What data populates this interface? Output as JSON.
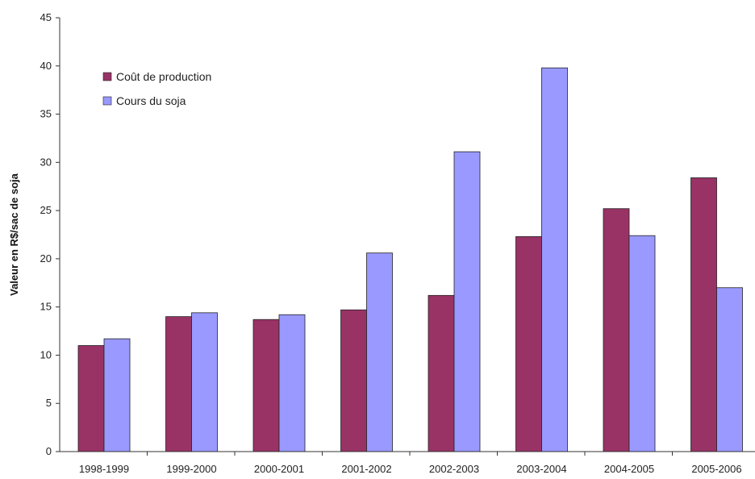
{
  "chart_data": {
    "type": "bar",
    "title": "",
    "xlabel": "",
    "ylabel": "Valeur en R$/sac de soja",
    "ylim": [
      0,
      45
    ],
    "yticks": [
      0,
      5,
      10,
      15,
      20,
      25,
      30,
      35,
      40,
      45
    ],
    "grid": false,
    "legend_position": "top-left",
    "categories": [
      "1998-1999",
      "1999-2000",
      "2000-2001",
      "2001-2002",
      "2002-2003",
      "2003-2004",
      "2004-2005",
      "2005-2006"
    ],
    "series": [
      {
        "name": "Coût de production",
        "color": "#993366",
        "values": [
          11.0,
          14.0,
          13.7,
          14.7,
          16.2,
          22.3,
          25.2,
          28.4
        ]
      },
      {
        "name": "Cours du soja",
        "color": "#9999ff",
        "values": [
          11.7,
          14.4,
          14.2,
          20.6,
          31.1,
          39.8,
          22.4,
          17.0
        ]
      }
    ]
  }
}
